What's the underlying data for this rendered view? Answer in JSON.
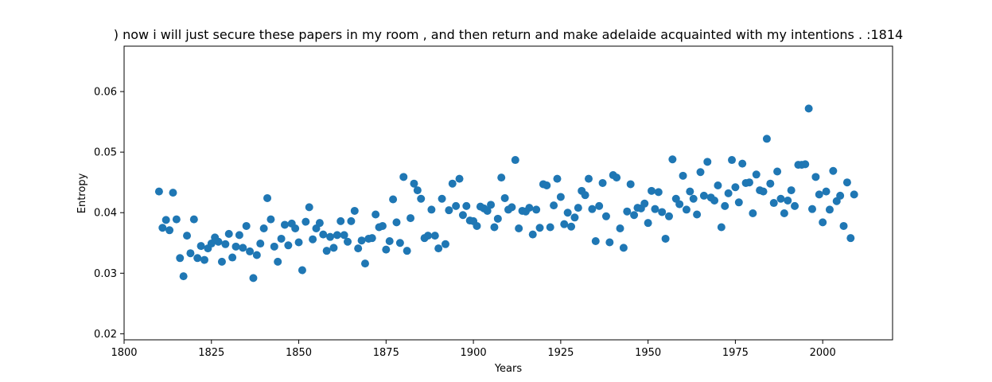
{
  "chart_data": {
    "type": "scatter",
    "title": ") now i will just secure these papers in my room , and then return and make adelaide acquainted with my intentions . :1814",
    "xlabel": "Years",
    "ylabel": "Entropy",
    "xlim": [
      1800,
      2020
    ],
    "ylim": [
      0.019,
      0.0675
    ],
    "xticks": [
      1800,
      1825,
      1850,
      1875,
      1900,
      1925,
      1950,
      1975,
      2000
    ],
    "yticks": [
      0.02,
      0.03,
      0.04,
      0.05,
      0.06
    ],
    "ytick_labels": [
      "0.02",
      "0.03",
      "0.04",
      "0.05",
      "0.06"
    ],
    "grid": false,
    "marker_color": "#1f77b4",
    "x": [
      1810,
      1811,
      1812,
      1813,
      1814,
      1815,
      1816,
      1817,
      1818,
      1819,
      1820,
      1821,
      1822,
      1823,
      1824,
      1825,
      1826,
      1827,
      1828,
      1829,
      1830,
      1831,
      1832,
      1833,
      1834,
      1835,
      1836,
      1837,
      1838,
      1839,
      1840,
      1841,
      1842,
      1843,
      1844,
      1845,
      1846,
      1847,
      1848,
      1849,
      1850,
      1851,
      1852,
      1853,
      1854,
      1855,
      1856,
      1857,
      1858,
      1859,
      1860,
      1861,
      1862,
      1863,
      1864,
      1865,
      1866,
      1867,
      1868,
      1869,
      1870,
      1871,
      1872,
      1873,
      1874,
      1875,
      1876,
      1877,
      1878,
      1879,
      1880,
      1881,
      1882,
      1883,
      1884,
      1885,
      1886,
      1887,
      1888,
      1889,
      1890,
      1891,
      1892,
      1893,
      1894,
      1895,
      1896,
      1897,
      1898,
      1899,
      1900,
      1901,
      1902,
      1903,
      1904,
      1905,
      1906,
      1907,
      1908,
      1909,
      1910,
      1911,
      1912,
      1913,
      1914,
      1915,
      1916,
      1917,
      1918,
      1919,
      1920,
      1921,
      1922,
      1923,
      1924,
      1925,
      1926,
      1927,
      1928,
      1929,
      1930,
      1931,
      1932,
      1933,
      1934,
      1935,
      1936,
      1937,
      1938,
      1939,
      1940,
      1941,
      1942,
      1943,
      1944,
      1945,
      1946,
      1947,
      1948,
      1949,
      1950,
      1951,
      1952,
      1953,
      1954,
      1955,
      1956,
      1957,
      1958,
      1959,
      1960,
      1961,
      1962,
      1963,
      1964,
      1965,
      1966,
      1967,
      1968,
      1969,
      1970,
      1971,
      1972,
      1973,
      1974,
      1975,
      1976,
      1977,
      1978,
      1979,
      1980,
      1981,
      1982,
      1983,
      1984,
      1985,
      1986,
      1987,
      1988,
      1989,
      1990,
      1991,
      1992,
      1993,
      1994,
      1995,
      1996,
      1997,
      1998,
      1999,
      2000,
      2001,
      2002,
      2003,
      2004,
      2005,
      2006,
      2007,
      2008,
      2009
    ],
    "y": [
      0.0435,
      0.0375,
      0.0388,
      0.0371,
      0.0433,
      0.0389,
      0.0325,
      0.0295,
      0.0362,
      0.0333,
      0.0389,
      0.0325,
      0.0345,
      0.0322,
      0.0341,
      0.0349,
      0.0359,
      0.0352,
      0.0319,
      0.0348,
      0.0365,
      0.0326,
      0.0344,
      0.0363,
      0.0342,
      0.0378,
      0.0336,
      0.0292,
      0.033,
      0.0349,
      0.0374,
      0.0424,
      0.0389,
      0.0344,
      0.0319,
      0.0357,
      0.038,
      0.0346,
      0.0382,
      0.0374,
      0.0351,
      0.0305,
      0.0385,
      0.0409,
      0.0356,
      0.0374,
      0.0383,
      0.0364,
      0.0337,
      0.036,
      0.0342,
      0.0363,
      0.0386,
      0.0363,
      0.0352,
      0.0386,
      0.0403,
      0.0341,
      0.0354,
      0.0316,
      0.0357,
      0.0358,
      0.0397,
      0.0376,
      0.0378,
      0.0339,
      0.0353,
      0.0422,
      0.0384,
      0.035,
      0.0459,
      0.0337,
      0.0391,
      0.0448,
      0.0437,
      0.0423,
      0.0358,
      0.0362,
      0.0405,
      0.0362,
      0.0341,
      0.0423,
      0.0348,
      0.0404,
      0.0448,
      0.0411,
      0.0456,
      0.0396,
      0.0411,
      0.0387,
      0.0386,
      0.0378,
      0.041,
      0.0407,
      0.0403,
      0.0413,
      0.0376,
      0.039,
      0.0458,
      0.0424,
      0.0405,
      0.0409,
      0.0487,
      0.0374,
      0.0403,
      0.0402,
      0.0408,
      0.0364,
      0.0405,
      0.0375,
      0.0447,
      0.0445,
      0.0376,
      0.0412,
      0.0456,
      0.0426,
      0.0381,
      0.04,
      0.0377,
      0.0392,
      0.0408,
      0.0436,
      0.0429,
      0.0456,
      0.0406,
      0.0353,
      0.0411,
      0.0449,
      0.0394,
      0.0351,
      0.0462,
      0.0458,
      0.0374,
      0.0342,
      0.0402,
      0.0447,
      0.0396,
      0.0408,
      0.0407,
      0.0415,
      0.0383,
      0.0436,
      0.0406,
      0.0434,
      0.0401,
      0.0357,
      0.0394,
      0.0488,
      0.0423,
      0.0414,
      0.0461,
      0.0405,
      0.0435,
      0.0423,
      0.0397,
      0.0467,
      0.0428,
      0.0484,
      0.0425,
      0.042,
      0.0445,
      0.0376,
      0.0411,
      0.0432,
      0.0487,
      0.0442,
      0.0417,
      0.0481,
      0.0449,
      0.045,
      0.0399,
      0.0463,
      0.0437,
      0.0435,
      0.0522,
      0.0448,
      0.0416,
      0.0468,
      0.0423,
      0.0399,
      0.042,
      0.0437,
      0.0411,
      0.0479,
      0.0479,
      0.048,
      0.0572,
      0.0406,
      0.0459,
      0.043,
      0.0384,
      0.0435,
      0.0405,
      0.0469,
      0.0419,
      0.0428,
      0.0378,
      0.045,
      0.0358,
      0.043
    ]
  }
}
